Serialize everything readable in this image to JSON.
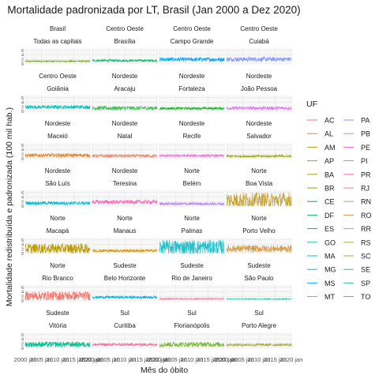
{
  "chart_data": {
    "type": "line",
    "title": "Mortalidade padronizada por LT, Brasil (Jan 2000 a Dez 2020)",
    "xlabel": "Mês do óbito",
    "ylabel": "Mortalidade redistribuída e padronizada (100 mil hab.)",
    "x_range": [
      "2000-01",
      "2020-12"
    ],
    "x_tick_labels": [
      "2000 jan",
      "2005 jan",
      "2010 jan",
      "2015 jan",
      "2020 jan"
    ],
    "y_tick_labels": [
      "0",
      "2",
      "4",
      "6"
    ],
    "ylim": [
      0,
      7
    ],
    "grid": true,
    "legend": {
      "title": "UF",
      "placement": "right",
      "entries": [
        {
          "name": "AC",
          "color": "#F8766D"
        },
        {
          "name": "AL",
          "color": "#E9842C"
        },
        {
          "name": "AM",
          "color": "#D69100"
        },
        {
          "name": "AP",
          "color": "#BC9D00"
        },
        {
          "name": "BA",
          "color": "#9CA700"
        },
        {
          "name": "BR",
          "color": "#6FB000"
        },
        {
          "name": "CE",
          "color": "#00B813"
        },
        {
          "name": "DF",
          "color": "#00BD61"
        },
        {
          "name": "ES",
          "color": "#00C08E"
        },
        {
          "name": "GO",
          "color": "#00C0B4"
        },
        {
          "name": "MA",
          "color": "#00BDD4"
        },
        {
          "name": "MG",
          "color": "#00B5EE"
        },
        {
          "name": "MS",
          "color": "#00A7FF"
        },
        {
          "name": "MT",
          "color": "#7F96FF"
        },
        {
          "name": "PA",
          "color": "#BC81FF"
        },
        {
          "name": "PB",
          "color": "#E26EF7"
        },
        {
          "name": "PE",
          "color": "#F863DF"
        },
        {
          "name": "PI",
          "color": "#FF62BF"
        },
        {
          "name": "PR",
          "color": "#FF6A9A"
        },
        {
          "name": "RJ",
          "color": "#F07C9E"
        },
        {
          "name": "RN",
          "color": "#E58A70"
        },
        {
          "name": "RO",
          "color": "#D59A47"
        },
        {
          "name": "RR",
          "color": "#C7A53F"
        },
        {
          "name": "RS",
          "color": "#A8AE3A"
        },
        {
          "name": "SC",
          "color": "#7CB839"
        },
        {
          "name": "SE",
          "color": "#3DBF55"
        },
        {
          "name": "SP",
          "color": "#2BC3A0"
        },
        {
          "name": "TO",
          "color": "#29BFC9"
        }
      ]
    },
    "panels": [
      {
        "region": "Brasil",
        "city": "Todas as capitais",
        "uf": "BR",
        "level": 1.2,
        "noise": 0.3
      },
      {
        "region": "Centro Oeste",
        "city": "Brasília",
        "uf": "DF",
        "level": 1.5,
        "noise": 0.5
      },
      {
        "region": "Centro Oeste",
        "city": "Campo Grande",
        "uf": "MS",
        "level": 2.0,
        "noise": 0.9
      },
      {
        "region": "Centro Oeste",
        "city": "Cuiabá",
        "uf": "MT",
        "level": 2.1,
        "noise": 1.0
      },
      {
        "region": "Centro Oeste",
        "city": "Goiânia",
        "uf": "GO",
        "level": 1.9,
        "noise": 0.8
      },
      {
        "region": "Nordeste",
        "city": "Aracaju",
        "uf": "SE",
        "level": 1.4,
        "noise": 0.9
      },
      {
        "region": "Nordeste",
        "city": "Fortaleza",
        "uf": "CE",
        "level": 1.3,
        "noise": 0.5
      },
      {
        "region": "Nordeste",
        "city": "João Pessoa",
        "uf": "PB",
        "level": 1.4,
        "noise": 0.7
      },
      {
        "region": "Nordeste",
        "city": "Maceió",
        "uf": "AL",
        "level": 1.5,
        "noise": 0.8
      },
      {
        "region": "Nordeste",
        "city": "Natal",
        "uf": "RN",
        "level": 1.2,
        "noise": 0.7
      },
      {
        "region": "Nordeste",
        "city": "Recife",
        "uf": "PE",
        "level": 1.3,
        "noise": 0.5
      },
      {
        "region": "Nordeste",
        "city": "Salvador",
        "uf": "BA",
        "level": 1.1,
        "noise": 0.5
      },
      {
        "region": "Nordeste",
        "city": "São Luís",
        "uf": "MA",
        "level": 1.3,
        "noise": 0.7
      },
      {
        "region": "Nordeste",
        "city": "Teresina",
        "uf": "PI",
        "level": 1.8,
        "noise": 0.9
      },
      {
        "region": "Norte",
        "city": "Belém",
        "uf": "PA",
        "level": 1.0,
        "noise": 0.6
      },
      {
        "region": "Norte",
        "city": "Boa Vista",
        "uf": "RR",
        "level": 2.6,
        "noise": 3.5
      },
      {
        "region": "Norte",
        "city": "Macapá",
        "uf": "AP",
        "level": 2.2,
        "noise": 2.2
      },
      {
        "region": "Norte",
        "city": "Manaus",
        "uf": "AM",
        "level": 1.2,
        "noise": 0.6
      },
      {
        "region": "Norte",
        "city": "Palmas",
        "uf": "TO",
        "level": 2.8,
        "noise": 3.2
      },
      {
        "region": "Norte",
        "city": "Porto Velho",
        "uf": "RO",
        "level": 2.1,
        "noise": 1.6
      },
      {
        "region": "Norte",
        "city": "Rio Branco",
        "uf": "AC",
        "level": 2.2,
        "noise": 2.0
      },
      {
        "region": "Sudeste",
        "city": "Belo Horizonte",
        "uf": "MG",
        "level": 1.6,
        "noise": 0.6
      },
      {
        "region": "Sudeste",
        "city": "Rio de Janeiro",
        "uf": "RJ",
        "level": 0.9,
        "noise": 0.3
      },
      {
        "region": "Sudeste",
        "city": "São Paulo",
        "uf": "SP",
        "level": 0.8,
        "noise": 0.2
      },
      {
        "region": "Sudeste",
        "city": "Vitória",
        "uf": "ES",
        "level": 1.7,
        "noise": 1.2
      },
      {
        "region": "Sul",
        "city": "Curitiba",
        "uf": "PR",
        "level": 1.6,
        "noise": 0.6
      },
      {
        "region": "Sul",
        "city": "Florianópolis",
        "uf": "SC",
        "level": 1.7,
        "noise": 1.1
      },
      {
        "region": "Sul",
        "city": "Porto Alegre",
        "uf": "RS",
        "level": 1.5,
        "noise": 0.6
      }
    ]
  }
}
